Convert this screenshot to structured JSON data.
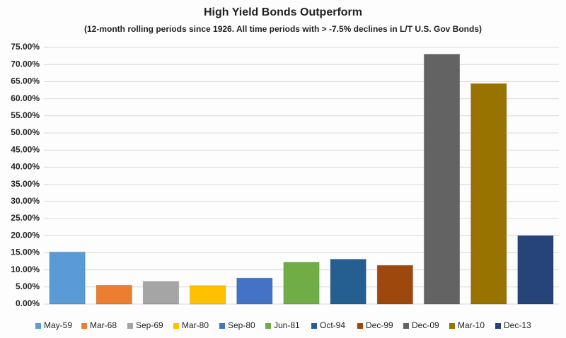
{
  "chart_data": {
    "type": "bar",
    "title": "High Yield Bonds Outperform",
    "subtitle": "(12-month rolling periods since 1926.  All time periods with > -7.5% declines in L/T U.S. Gov Bonds)",
    "categories": [
      "May-59",
      "Mar-68",
      "Sep-69",
      "Mar-80",
      "Sep-80",
      "Jun-81",
      "Oct-94",
      "Dec-99",
      "Dec-09",
      "Mar-10",
      "Dec-13"
    ],
    "values": [
      15.2,
      5.5,
      6.6,
      5.4,
      7.6,
      12.2,
      13.1,
      11.3,
      73.0,
      64.4,
      20.0
    ],
    "colors": [
      "#5b9bd5",
      "#ed7d31",
      "#a5a5a5",
      "#ffc000",
      "#4472c4",
      "#70ad47",
      "#255e91",
      "#9e480e",
      "#636363",
      "#997300",
      "#264478"
    ],
    "ylim": [
      0,
      75
    ],
    "yticks": [
      {
        "value": 0,
        "label": "0.00%"
      },
      {
        "value": 5,
        "label": "5.00%"
      },
      {
        "value": 10,
        "label": "10.00%"
      },
      {
        "value": 15,
        "label": "15.00%"
      },
      {
        "value": 20,
        "label": "20.00%"
      },
      {
        "value": 25,
        "label": "25.00%"
      },
      {
        "value": 30,
        "label": "30.00%"
      },
      {
        "value": 35,
        "label": "35.00%"
      },
      {
        "value": 40,
        "label": "40.00%"
      },
      {
        "value": 45,
        "label": "45.00%"
      },
      {
        "value": 50,
        "label": "50.00%"
      },
      {
        "value": 55,
        "label": "55.00%"
      },
      {
        "value": 60,
        "label": "60.00%"
      },
      {
        "value": 65,
        "label": "65.00%"
      },
      {
        "value": 70,
        "label": "70.00%"
      },
      {
        "value": 75,
        "label": "75.00%"
      }
    ],
    "grid": true,
    "legend": "bottom"
  }
}
